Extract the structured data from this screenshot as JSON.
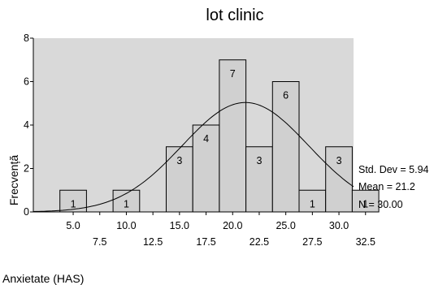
{
  "chart_data": {
    "type": "bar",
    "title": "lot clinic",
    "xlabel": "Anxietate (HAS)",
    "ylabel": "Frecvență",
    "ylim": [
      0,
      8
    ],
    "y_ticks": [
      "0",
      "2",
      "4",
      "6",
      "8"
    ],
    "x_ticks": [
      "5.0",
      "7.5",
      "10.0",
      "12.5",
      "15.0",
      "17.5",
      "20.0",
      "22.5",
      "25.0",
      "27.5",
      "30.0",
      "32.5"
    ],
    "bin_width": 2.5,
    "bins": [
      {
        "center": 5.0,
        "value": 1
      },
      {
        "center": 10.0,
        "value": 1
      },
      {
        "center": 15.0,
        "value": 3
      },
      {
        "center": 17.5,
        "value": 4
      },
      {
        "center": 20.0,
        "value": 7
      },
      {
        "center": 22.5,
        "value": 3
      },
      {
        "center": 25.0,
        "value": 6
      },
      {
        "center": 27.5,
        "value": 1
      },
      {
        "center": 30.0,
        "value": 3
      },
      {
        "center": 32.5,
        "value": 1
      }
    ],
    "normal_curve": {
      "mean": 21.2,
      "std_dev": 5.94,
      "n": 30
    },
    "stats": {
      "std_dev": "Std. Dev = 5.94",
      "mean": "Mean = 21.2",
      "n": "N = 30.00"
    },
    "grid": false,
    "colors": {
      "plot_background": "#d9d9d9",
      "bar_fill": "#d0d0d0",
      "bar_stroke": "#000000",
      "curve": "#000000"
    }
  }
}
